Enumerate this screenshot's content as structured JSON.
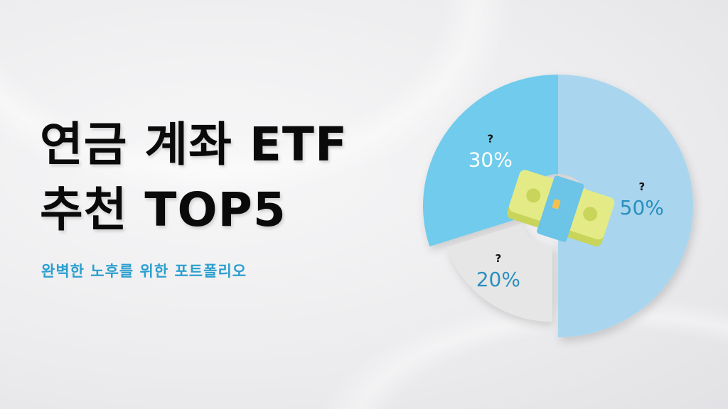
{
  "title": {
    "line1": "연금 계좌 ETF",
    "line2": "추천 TOP5"
  },
  "subtitle": "완벽한 노후를 위한 포트폴리오",
  "chart_data": {
    "type": "pie",
    "slices": [
      {
        "label": "?",
        "value": 50,
        "value_label": "50%",
        "color": "#a9d6ee",
        "text_color": "#2a8fbf"
      },
      {
        "label": "?",
        "value": 20,
        "value_label": "20%",
        "color": "#e6e6e6",
        "text_color": "#2a8fbf"
      },
      {
        "label": "?",
        "value": 30,
        "value_label": "30%",
        "color": "#6fcbec",
        "text_color": "#ffffff"
      }
    ],
    "center_icon": "money-stack-icon"
  },
  "colors": {
    "title": "#0a0a0a",
    "subtitle": "#2b9fcf"
  }
}
